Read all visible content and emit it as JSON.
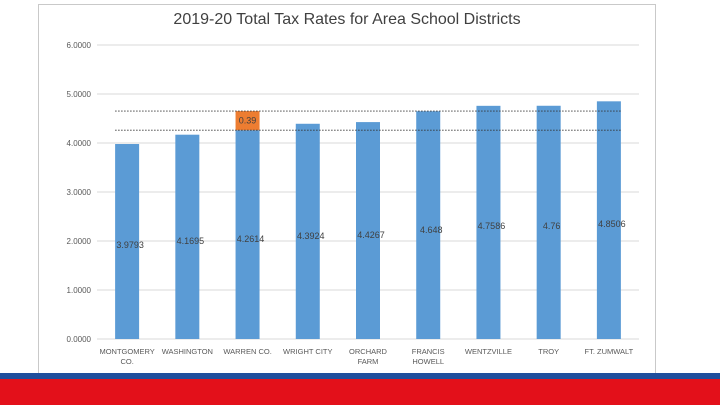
{
  "chart_data": {
    "type": "bar",
    "title": "2019-20 Total Tax Rates for Area School Districts",
    "xlabel": "",
    "ylabel": "",
    "ylim": [
      0,
      6
    ],
    "yticks": [
      "0.0000",
      "1.0000",
      "2.0000",
      "3.0000",
      "4.0000",
      "5.0000",
      "6.0000"
    ],
    "grid": true,
    "categories": [
      [
        "MONTGOMERY",
        "CO."
      ],
      [
        "WASHINGTON"
      ],
      [
        "WARREN CO."
      ],
      [
        "WRIGHT CITY"
      ],
      [
        "ORCHARD",
        "FARM"
      ],
      [
        "FRANCIS",
        "HOWELL"
      ],
      [
        "WENTZVILLE"
      ],
      [
        "TROY"
      ],
      [
        "FT. ZUMWALT"
      ]
    ],
    "values": [
      3.9793,
      4.1695,
      4.2614,
      4.3924,
      4.4267,
      4.648,
      4.7586,
      4.76,
      4.8506
    ],
    "data_labels": [
      "3.9793",
      "4.1695",
      "4.2614",
      "4.3924",
      "4.4267",
      "4.648",
      "4.7586",
      "4.76",
      "4.8506"
    ],
    "bar_color": "#5b9bd5",
    "annotation": {
      "category_index": 2,
      "base": 4.2614,
      "value": 0.39,
      "label": "0.39",
      "color": "#ed7d31"
    },
    "reference_lines": [
      4.2614,
      4.6514
    ]
  },
  "footer": {
    "stripe_colors": [
      "#1f4e9c",
      "#e3101a"
    ]
  }
}
